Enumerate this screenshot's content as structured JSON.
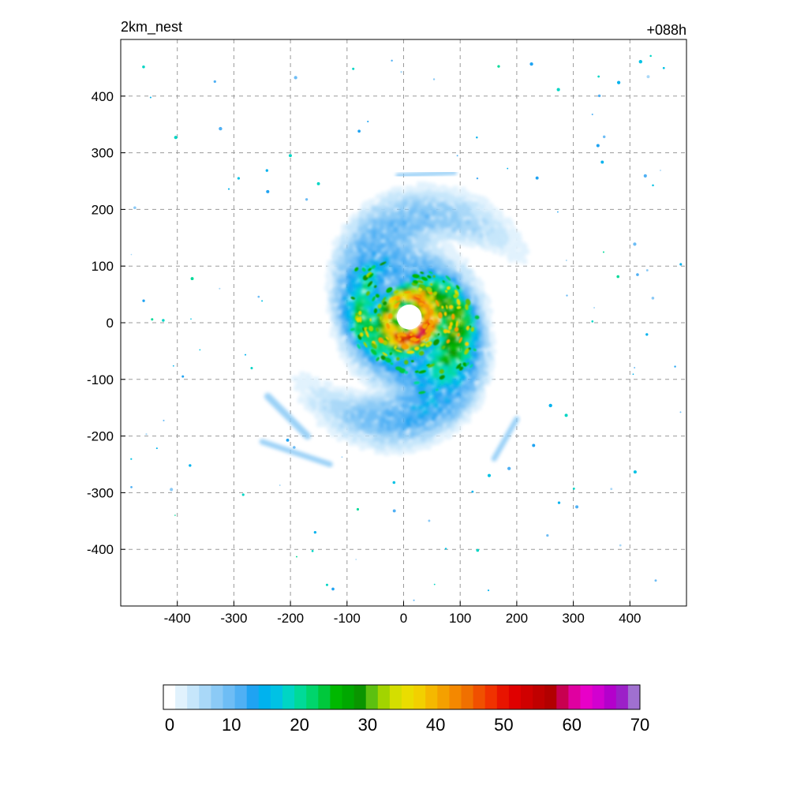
{
  "chart_data": {
    "type": "heatmap",
    "title_left": "2km_nest",
    "title_right": "+088h",
    "xlim": [
      -500,
      500
    ],
    "ylim": [
      -500,
      500
    ],
    "x_ticks": [
      -400,
      -300,
      -200,
      -100,
      0,
      100,
      200,
      300,
      400
    ],
    "y_ticks": [
      400,
      300,
      200,
      100,
      0,
      -100,
      -200,
      -300,
      -400
    ],
    "grid": true,
    "colorbar": {
      "min": 0,
      "max": 70,
      "step": 2.5,
      "tick_values": [
        0,
        10,
        20,
        30,
        40,
        50,
        60,
        70
      ],
      "colors": [
        "#ffffff",
        "#e1f2fd",
        "#c6e6fb",
        "#a9d8f8",
        "#8bcaf6",
        "#6ebdf5",
        "#4fb0f4",
        "#1fa3f2",
        "#00b2ee",
        "#00c2e4",
        "#00d5c4",
        "#00da98",
        "#00d56c",
        "#00c83c",
        "#00b800",
        "#00a800",
        "#0a9500",
        "#5cc010",
        "#a2d400",
        "#d4de00",
        "#eadd00",
        "#f2d000",
        "#f5b800",
        "#f4a000",
        "#f48800",
        "#f07000",
        "#f05000",
        "#f03200",
        "#e81400",
        "#e00000",
        "#d00000",
        "#c00000",
        "#b20000",
        "#c80050",
        "#e000a0",
        "#e800c8",
        "#d200d0",
        "#b400cc",
        "#9c20c8",
        "#a070d0"
      ]
    },
    "field": {
      "description_units": "km",
      "eye_center": [
        10,
        10
      ],
      "eye_radius_km": 22,
      "max_value_approx": 55
    }
  }
}
